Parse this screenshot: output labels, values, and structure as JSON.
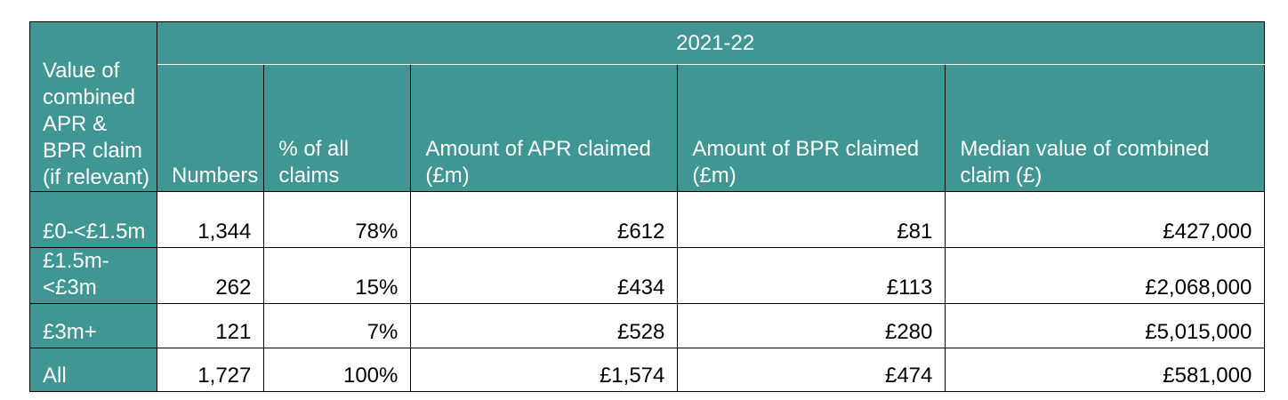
{
  "table": {
    "corner_header": "Value of combined APR & BPR claim (if relevant)",
    "period_header": "2021-22",
    "columns": [
      "Numbers",
      "% of all claims",
      "Amount of APR claimed (£m)",
      "Amount of BPR claimed (£m)",
      "Median value of combined claim (£)"
    ],
    "rows": [
      {
        "label": "£0-<£1.5m",
        "values": [
          "1,344",
          "78%",
          "£612",
          "£81",
          "£427,000"
        ]
      },
      {
        "label": "£1.5m-<£3m",
        "values": [
          "262",
          "15%",
          "£434",
          "£113",
          "£2,068,000"
        ]
      },
      {
        "label": "£3m+",
        "values": [
          "121",
          "7%",
          "£528",
          "£280",
          "£5,015,000"
        ]
      },
      {
        "label": "All",
        "values": [
          "1,727",
          "100%",
          "£1,574",
          "£474",
          "£581,000"
        ]
      }
    ],
    "colors": {
      "header_background": "#3f9693",
      "header_text": "#ffffff"
    }
  }
}
